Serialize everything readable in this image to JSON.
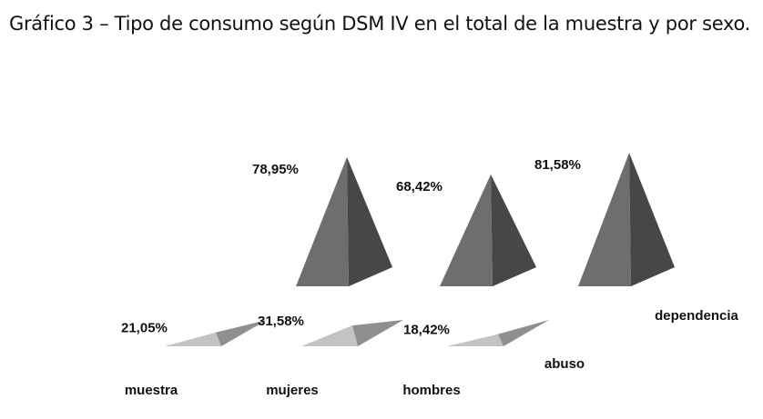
{
  "chart_data": {
    "type": "bar",
    "style": "3d-pyramid",
    "title": "Gráfico 3 – Tipo de consumo según DSM IV en el total de la muestra y por sexo.",
    "categories": [
      "muestra",
      "mujeres",
      "hombres"
    ],
    "series": [
      {
        "name": "abuso",
        "values": [
          21.05,
          31.58,
          18.42
        ],
        "labels": [
          "21,05%",
          "31,58%",
          "18,42%"
        ],
        "color_left": "#c3c3c3",
        "color_right": "#8f8f8f"
      },
      {
        "name": "dependencia",
        "values": [
          78.95,
          68.42,
          81.58
        ],
        "labels": [
          "78,95%",
          "68,42%",
          "81,58%"
        ],
        "color_left": "#6e6e6e",
        "color_right": "#474747"
      }
    ],
    "xlabel": "",
    "ylabel": "",
    "ylim": [
      0,
      100
    ],
    "grid": false
  }
}
